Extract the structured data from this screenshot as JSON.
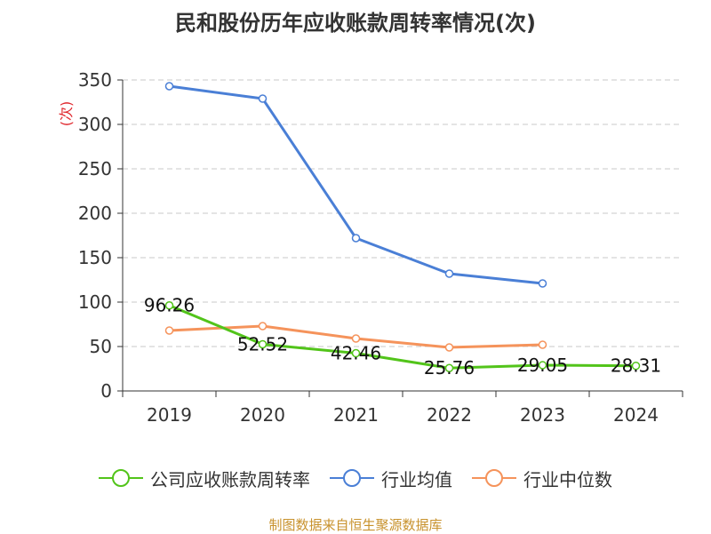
{
  "chart_data": {
    "type": "line",
    "title": "民和股份历年应收账款周转率情况(次)",
    "ylabel": "(次)",
    "xlabel": "",
    "ylim": [
      0,
      350
    ],
    "yticks": [
      0,
      50,
      100,
      150,
      200,
      250,
      300,
      350
    ],
    "categories": [
      "2019",
      "2020",
      "2021",
      "2022",
      "2023",
      "2024"
    ],
    "series": [
      {
        "name": "公司应收账款周转率",
        "color": "#52c41a",
        "values": [
          96.26,
          52.52,
          42.46,
          25.76,
          29.05,
          28.31
        ],
        "labels": [
          "96.26",
          "52.52",
          "42.46",
          "25.76",
          "29.05",
          "28.31"
        ]
      },
      {
        "name": "行业均值",
        "color": "#4a7fd6",
        "values": [
          343,
          329,
          172,
          132,
          121,
          null
        ]
      },
      {
        "name": "行业中位数",
        "color": "#f5935b",
        "values": [
          68,
          73,
          59,
          49,
          52,
          null
        ]
      }
    ],
    "grid": true,
    "legend_position": "bottom"
  },
  "source_note": "制图数据来自恒生聚源数据库"
}
